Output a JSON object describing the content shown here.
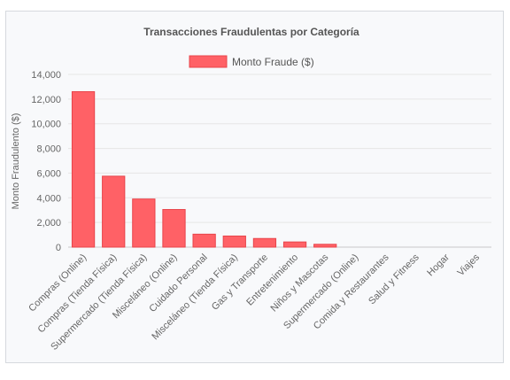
{
  "chart_data": {
    "type": "bar",
    "title": "Transacciones Fraudulentas por Categoría",
    "ylabel": "Monto Fraudulento ($)",
    "xlabel": "",
    "ylim": [
      0,
      14000
    ],
    "yticks": [
      "0",
      "2,000",
      "4,000",
      "6,000",
      "8,000",
      "10,000",
      "12,000",
      "14,000"
    ],
    "grid": true,
    "legend_position": "top",
    "bar_color": "#ff6166",
    "bar_border_color": "#e8454b",
    "categories": [
      "Compras (Online)",
      "Compras (Tienda Física)",
      "Supermercado (Tienda Física)",
      "Misceláneo (Online)",
      "Cuidado Personal",
      "Misceláneo (Tienda Física)",
      "Gas y Transporte",
      "Entretenimiento",
      "Niños y Mascotas",
      "Supermercado (Online)",
      "Comida y Restaurantes",
      "Salud y Fitness",
      "Hogar",
      "Viajes"
    ],
    "series": [
      {
        "name": "Monto Fraude ($)",
        "values": [
          12600,
          5750,
          3900,
          3050,
          1050,
          900,
          700,
          420,
          230,
          0,
          0,
          0,
          0,
          0
        ]
      }
    ]
  }
}
